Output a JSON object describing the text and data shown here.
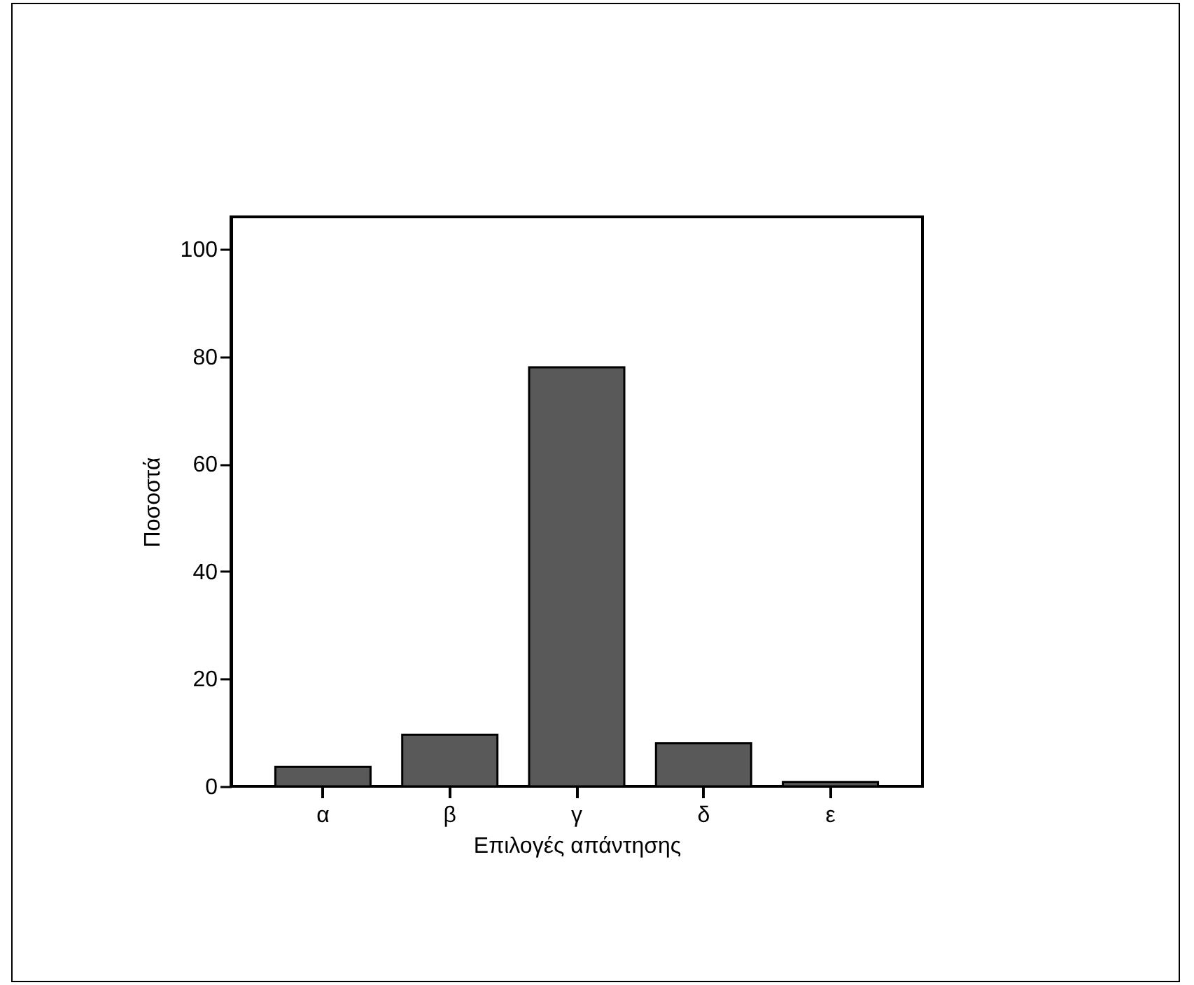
{
  "chart_data": {
    "type": "bar",
    "xlabel": "Επιλογές απάντησης",
    "ylabel": "Ποσοστά",
    "categories": [
      "α",
      "β",
      "γ",
      "δ",
      "ε"
    ],
    "values": [
      3.6,
      9.6,
      78,
      8,
      0.8
    ],
    "color": "#595959",
    "ylim": [
      0,
      106
    ],
    "yticks": [
      0,
      20,
      40,
      60,
      80,
      100
    ],
    "grid": false
  }
}
